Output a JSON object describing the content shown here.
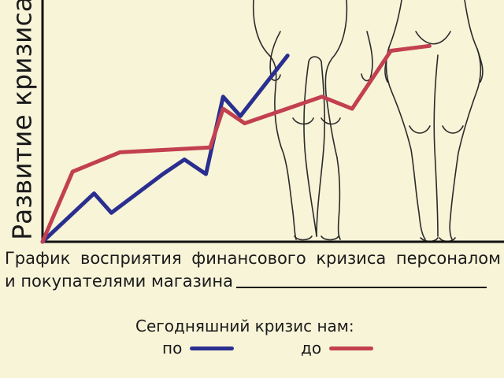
{
  "chart_data": {
    "type": "line",
    "title": "",
    "ylabel": "Развитие кризиса",
    "xlabel": "",
    "xlim": [
      0,
      100
    ],
    "ylim": [
      0,
      100
    ],
    "grid": false,
    "series": [
      {
        "name": "по",
        "color": "#2a2f8f",
        "points": [
          [
            0,
            0
          ],
          [
            12,
            20
          ],
          [
            16,
            12
          ],
          [
            28,
            28
          ],
          [
            33,
            34
          ],
          [
            38,
            28
          ],
          [
            42,
            60
          ],
          [
            46,
            52
          ],
          [
            57,
            77
          ]
        ]
      },
      {
        "name": "до",
        "color": "#c24050",
        "points": [
          [
            0,
            0
          ],
          [
            7,
            29
          ],
          [
            18,
            37
          ],
          [
            39,
            39
          ],
          [
            42,
            55
          ],
          [
            47,
            49
          ],
          [
            65,
            60
          ],
          [
            72,
            55
          ],
          [
            81,
            79
          ],
          [
            90,
            81
          ]
        ]
      }
    ]
  },
  "caption": {
    "line1": "График восприятия финансового кризиса персоналом",
    "line2": "и покупателями магазина"
  },
  "legend": {
    "title": "Сегодняшний кризис нам:",
    "items": [
      {
        "label": "по",
        "color": "#2a2f8f"
      },
      {
        "label": "до",
        "color": "#c24050"
      }
    ]
  }
}
